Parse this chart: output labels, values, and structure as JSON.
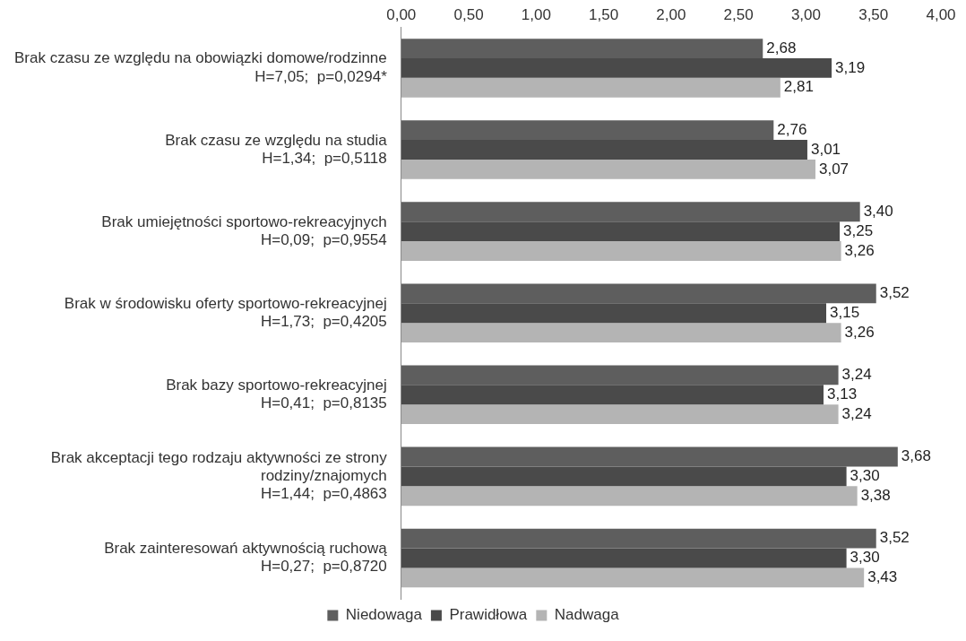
{
  "chart_data": {
    "type": "bar",
    "orientation": "horizontal",
    "categories": [
      "Brak czasu ze względu na obowiązki domowe/rodzinne\nH=7,05;  p=0,0294*",
      "Brak czasu ze względu na studia\nH=1,34;  p=0,5118",
      "Brak umiejętności sportowo-rekreacyjnych\nH=0,09;  p=0,9554",
      "Brak w środowisku oferty sportowo-rekreacyjnej\nH=1,73;  p=0,4205",
      "Brak bazy sportowo-rekreacyjnej\nH=0,41;  p=0,8135",
      "Brak akceptacji tego rodzaju aktywności ze strony\nrodziny/znajomych\nH=1,44;  p=0,4863",
      "Brak zainteresowań aktywnością ruchową\nH=0,27;  p=0,8720"
    ],
    "series": [
      {
        "name": "Niedowaga",
        "color": "#5e5e5e",
        "values": [
          2.68,
          2.76,
          3.4,
          3.52,
          3.24,
          3.68,
          3.52
        ],
        "value_labels": [
          "2,68",
          "2,76",
          "3,40",
          "3,52",
          "3,24",
          "3,68",
          "3,52"
        ]
      },
      {
        "name": "Prawidłowa",
        "color": "#4a4a4a",
        "values": [
          3.19,
          3.01,
          3.25,
          3.15,
          3.13,
          3.3,
          3.3
        ],
        "value_labels": [
          "3,19",
          "3,01",
          "3,25",
          "3,15",
          "3,13",
          "3,30",
          "3,30"
        ]
      },
      {
        "name": "Nadwaga",
        "color": "#b4b4b4",
        "values": [
          2.81,
          3.07,
          3.26,
          3.26,
          3.24,
          3.38,
          3.43
        ],
        "value_labels": [
          "2,81",
          "3,07",
          "3,26",
          "3,26",
          "3,24",
          "3,38",
          "3,43"
        ]
      }
    ],
    "xlim": [
      0,
      4
    ],
    "xticks": [
      {
        "value": 0,
        "label": "0,00"
      },
      {
        "value": 0.5,
        "label": "0,50"
      },
      {
        "value": 1,
        "label": "1,00"
      },
      {
        "value": 1.5,
        "label": "1,50"
      },
      {
        "value": 2,
        "label": "2,00"
      },
      {
        "value": 2.5,
        "label": "2,50"
      },
      {
        "value": 3,
        "label": "3,00"
      },
      {
        "value": 3.5,
        "label": "3,50"
      },
      {
        "value": 4,
        "label": "4,00"
      }
    ],
    "grid": false,
    "legend": "bottom"
  }
}
